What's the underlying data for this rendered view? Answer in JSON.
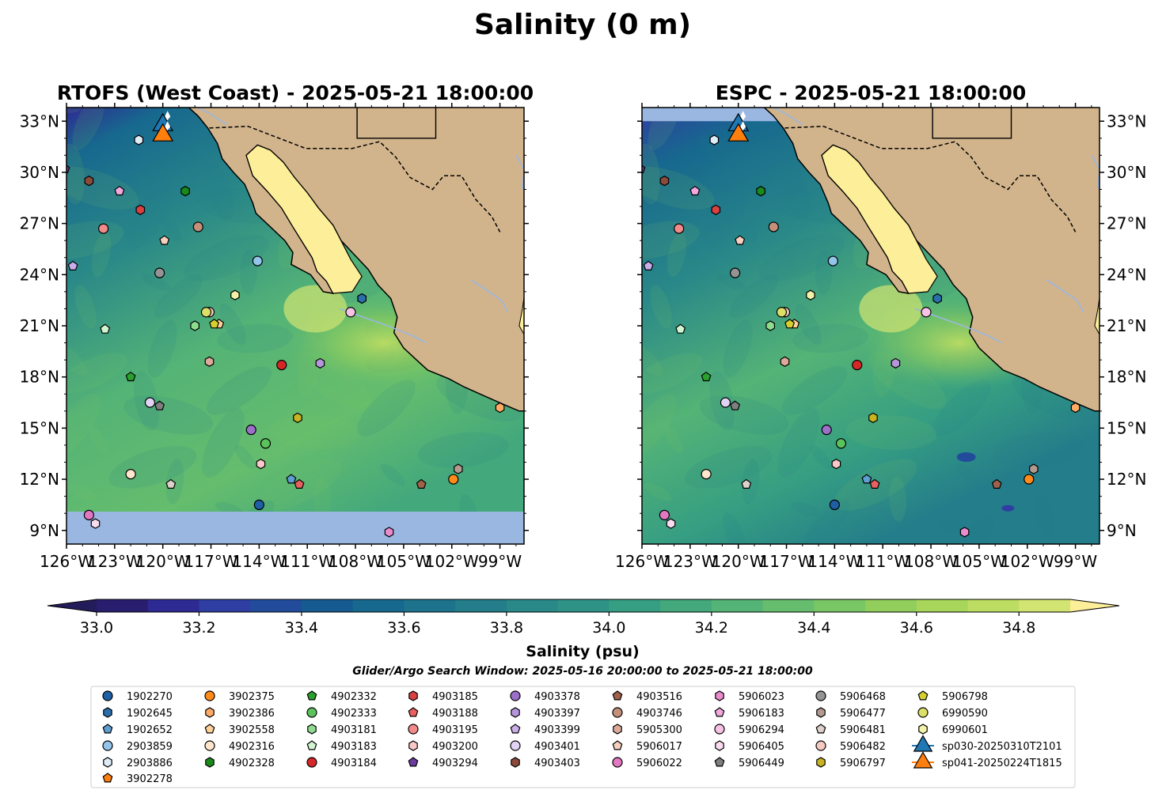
{
  "figure": {
    "title": "Salinity (0 m)",
    "window_label": "Glider/Argo Search Window: 2025-05-16 20:00:00 to 2025-05-21 18:00:00"
  },
  "panels": [
    {
      "title": "RTOFS (West Coast) - 2025-05-21 18:00:00",
      "lat_labels_side": "left",
      "model_coverage": "south-limit-10N"
    },
    {
      "title": "ESPC - 2025-05-21 18:00:00",
      "lat_labels_side": "right",
      "model_coverage": "north-limit-33N"
    }
  ],
  "colors": {
    "land": "#d2b48c",
    "nodata": "#9ab7e1",
    "gulf": "#fdee99",
    "river": "#9ab7e1",
    "glider_sp030": "#1f77b4",
    "glider_sp041": "#ff7f0e"
  },
  "colorbar": {
    "label": "Salinity (psu)",
    "levels_min": 33.0,
    "levels_max": 34.9,
    "step": 0.1,
    "extend": "both",
    "ticks": [
      "33.0",
      "33.2",
      "33.4",
      "33.6",
      "33.8",
      "34.0",
      "34.2",
      "34.4",
      "34.6",
      "34.8"
    ],
    "colors": [
      "#281d6e",
      "#2e2a93",
      "#2f3ea3",
      "#224c9b",
      "#155b91",
      "#17688e",
      "#1e738c",
      "#247d8a",
      "#298888",
      "#2e9386",
      "#369e82",
      "#43a87c",
      "#54b376",
      "#65bd6d",
      "#79c664",
      "#91ce5c",
      "#a7d65b",
      "#bddd62",
      "#d2e472"
    ],
    "under_color": "#231c5a",
    "over_color": "#fdee99"
  },
  "chart_data": {
    "type": "scatter",
    "xlim": [
      -126,
      -97.5
    ],
    "ylim": [
      8.2,
      33.8
    ],
    "xticks": [
      -126,
      -123,
      -120,
      -117,
      -114,
      -111,
      -108,
      -105,
      -102,
      -99
    ],
    "yticks": [
      9,
      12,
      15,
      18,
      21,
      24,
      27,
      30,
      33
    ],
    "xtick_labels": [
      "126°W",
      "123°W",
      "120°W",
      "117°W",
      "114°W",
      "111°W",
      "108°W",
      "105°W",
      "102°W",
      "99°W"
    ],
    "ytick_labels": [
      "9°N",
      "12°N",
      "15°N",
      "18°N",
      "21°N",
      "24°N",
      "27°N",
      "30°N",
      "33°N"
    ],
    "legend_placement": "bottom-center, 8 columns",
    "series": [
      {
        "name": "1902270",
        "marker": "circle",
        "color": "#1f5fa6",
        "lon": -114.0,
        "lat": 10.5
      },
      {
        "name": "1902645",
        "marker": "hexagon",
        "color": "#2a6fab",
        "lon": -107.6,
        "lat": 22.6
      },
      {
        "name": "1902652",
        "marker": "pentagon",
        "color": "#5f9ed1",
        "lon": -112.0,
        "lat": 12.0
      },
      {
        "name": "2903859",
        "marker": "circle",
        "color": "#93c4ea",
        "lon": -114.1,
        "lat": 24.8
      },
      {
        "name": "2903886",
        "marker": "hexagon",
        "color": "#deecf8",
        "lon": -121.5,
        "lat": 31.9
      },
      {
        "name": "3902278",
        "marker": "pentagon",
        "color": "#ff7f0e",
        "lon": -120.0,
        "lat": 32.5
      },
      {
        "name": "3902375",
        "marker": "circle",
        "color": "#ff8c1a",
        "lon": -101.9,
        "lat": 12.0
      },
      {
        "name": "3902386",
        "marker": "hexagon",
        "color": "#ffab66",
        "lon": -99.0,
        "lat": 16.2
      },
      {
        "name": "3902558",
        "marker": "pentagon",
        "color": "#ffd199",
        "lon": -116.5,
        "lat": 21.1
      },
      {
        "name": "4902316",
        "marker": "circle",
        "color": "#ffe6cc",
        "lon": -122.0,
        "lat": 12.3
      },
      {
        "name": "4902328",
        "marker": "hexagon",
        "color": "#1a8a1a",
        "lon": -118.6,
        "lat": 28.9
      },
      {
        "name": "4902332",
        "marker": "pentagon",
        "color": "#2ca02c",
        "lon": -122.0,
        "lat": 18.0
      },
      {
        "name": "4902333",
        "marker": "circle",
        "color": "#5cc35c",
        "lon": -113.6,
        "lat": 14.1
      },
      {
        "name": "4903181",
        "marker": "hexagon",
        "color": "#8fdc8f",
        "lon": -118.0,
        "lat": 21.0
      },
      {
        "name": "4903183",
        "marker": "pentagon",
        "color": "#d0f5d0",
        "lon": -123.6,
        "lat": 20.8
      },
      {
        "name": "4903184",
        "marker": "circle",
        "color": "#d62728",
        "lon": -112.6,
        "lat": 18.7
      },
      {
        "name": "4903185",
        "marker": "hexagon",
        "color": "#d94040",
        "lon": -121.4,
        "lat": 27.8
      },
      {
        "name": "4903188",
        "marker": "pentagon",
        "color": "#e86060",
        "lon": -111.5,
        "lat": 11.7
      },
      {
        "name": "4903195",
        "marker": "circle",
        "color": "#f28a8a",
        "lon": -123.7,
        "lat": 26.7
      },
      {
        "name": "4903200",
        "marker": "hexagon",
        "color": "#fac8c8",
        "lon": -113.9,
        "lat": 12.9
      },
      {
        "name": "4903294",
        "marker": "pentagon",
        "color": "#6a3d9a",
        "lon": -126.1,
        "lat": 30.2
      },
      {
        "name": "4903378",
        "marker": "circle",
        "color": "#9c6fc9",
        "lon": -114.5,
        "lat": 14.9
      },
      {
        "name": "4903397",
        "marker": "hexagon",
        "color": "#b596db",
        "lon": -110.2,
        "lat": 18.8
      },
      {
        "name": "4903399",
        "marker": "pentagon",
        "color": "#c9aee9",
        "lon": -125.6,
        "lat": 24.5
      },
      {
        "name": "4903401",
        "marker": "circle",
        "color": "#e2d3f5",
        "lon": -120.8,
        "lat": 16.5
      },
      {
        "name": "4903403",
        "marker": "hexagon",
        "color": "#8c4a3a",
        "lon": -124.6,
        "lat": 29.5
      },
      {
        "name": "4903516",
        "marker": "pentagon",
        "color": "#a0624a",
        "lon": -103.9,
        "lat": 11.7
      },
      {
        "name": "4903746",
        "marker": "circle",
        "color": "#c4907a",
        "lon": -117.8,
        "lat": 26.8
      },
      {
        "name": "5905300",
        "marker": "hexagon",
        "color": "#dea99a",
        "lon": -117.1,
        "lat": 18.9
      },
      {
        "name": "5906017",
        "marker": "pentagon",
        "color": "#f6cfbf",
        "lon": -119.9,
        "lat": 26.0
      },
      {
        "name": "5906022",
        "marker": "circle",
        "color": "#e377c2",
        "lon": -124.6,
        "lat": 9.9
      },
      {
        "name": "5906023",
        "marker": "hexagon",
        "color": "#e98bcd",
        "lon": -105.9,
        "lat": 8.9
      },
      {
        "name": "5906183",
        "marker": "pentagon",
        "color": "#f2a8dc",
        "lon": -122.7,
        "lat": 28.9
      },
      {
        "name": "5906294",
        "marker": "circle",
        "color": "#f7c2e6",
        "lon": -108.3,
        "lat": 21.8
      },
      {
        "name": "5906405",
        "marker": "hexagon",
        "color": "#fadcf0",
        "lon": -124.2,
        "lat": 9.4
      },
      {
        "name": "5906449",
        "marker": "pentagon",
        "color": "#7f7f7f",
        "lon": -120.2,
        "lat": 16.3
      },
      {
        "name": "5906468",
        "marker": "circle",
        "color": "#949494",
        "lon": -120.2,
        "lat": 24.1
      },
      {
        "name": "5906477",
        "marker": "hexagon",
        "color": "#b29a90",
        "lon": -101.6,
        "lat": 12.6
      },
      {
        "name": "5906481",
        "marker": "pentagon",
        "color": "#ded0ca",
        "lon": -119.5,
        "lat": 11.7
      },
      {
        "name": "5906482",
        "marker": "circle",
        "color": "#f5c9c0",
        "lon": -117.1,
        "lat": 21.8
      },
      {
        "name": "5906797",
        "marker": "hexagon",
        "color": "#c8b420",
        "lon": -111.6,
        "lat": 15.6
      },
      {
        "name": "5906798",
        "marker": "pentagon",
        "color": "#d4d030",
        "lon": -116.8,
        "lat": 21.1
      },
      {
        "name": "6990590",
        "marker": "circle",
        "color": "#dde066",
        "lon": -117.3,
        "lat": 21.8
      },
      {
        "name": "6990601",
        "marker": "hexagon",
        "color": "#f3f3a8",
        "lon": -115.5,
        "lat": 22.8
      },
      {
        "name": "sp030-20250310T2101",
        "marker": "triangle",
        "color": "#1f77b4",
        "lon": -120.0,
        "lat": 32.9,
        "line": true
      },
      {
        "name": "sp041-20250224T1815",
        "marker": "triangle",
        "color": "#ff7f0e",
        "lon": -120.0,
        "lat": 32.3,
        "line": true
      }
    ]
  }
}
